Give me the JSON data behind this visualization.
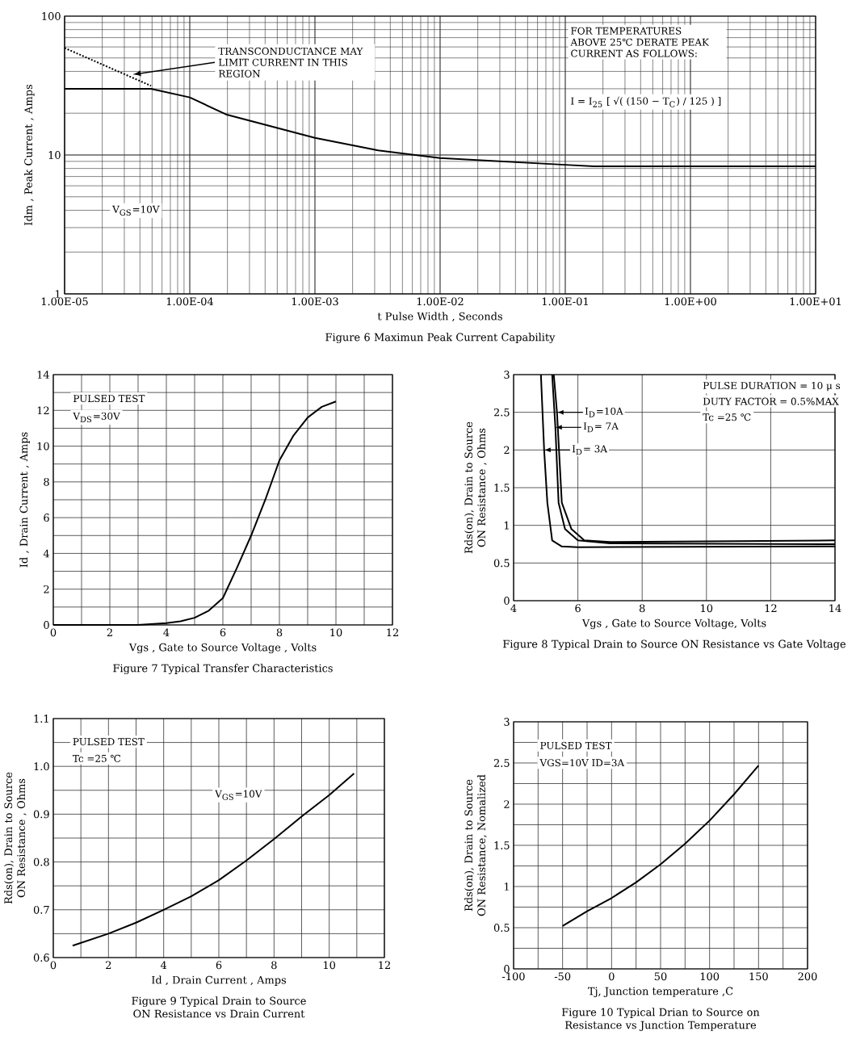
{
  "chart_data": [
    {
      "type": "line",
      "title": "Figure    6    Maximun Peak Current Capability",
      "xlabel": "t    Pulse Width , Seconds",
      "ylabel": "Idm , Peak Current , Amps",
      "log": "xy",
      "grid": true,
      "xlim": [
        1e-05,
        10
      ],
      "ylim": [
        1,
        100
      ],
      "xticks": [
        {
          "value": 1e-05,
          "label": "1.00E-05"
        },
        {
          "value": 0.0001,
          "label": "1.00E-04"
        },
        {
          "value": 0.001,
          "label": "1.00E-03"
        },
        {
          "value": 0.01,
          "label": "1.00E-02"
        },
        {
          "value": 0.1,
          "label": "1.00E-01"
        },
        {
          "value": 1,
          "label": "1.00E+00"
        },
        {
          "value": 10,
          "label": "1.00E+01"
        }
      ],
      "yticks": [
        1,
        10,
        100
      ],
      "series": [
        {
          "color": "#000000",
          "x": [
            1e-05,
            4.9e-05,
            0.0001,
            0.000195,
            0.001,
            0.0032,
            0.01,
            0.1,
            0.17,
            10
          ],
          "values": [
            30,
            30,
            26,
            19.6,
            13.3,
            10.8,
            9.5,
            8.5,
            8.3,
            8.3
          ]
        },
        {
          "color": "#000000",
          "line_style": "dotted",
          "x": [
            1e-05,
            4.9e-05
          ],
          "values": [
            59,
            31.5
          ]
        }
      ],
      "annotations": [
        {
          "text": "TRANSCONDUCTANCE  MAY  LIMIT CURRENT  IN  THIS  REGION",
          "x": 3.5e-05,
          "y": 38
        },
        "FOR  TEMPERATURES ABOVE  25℃ DERATE  PEAK CURRENT  AS  FOLLOWS:",
        "I = I$_{25}$ [ √( (150 − T$_{C}$) / 125 ) ]",
        "V$_{GS}$=10V"
      ]
    },
    {
      "type": "line",
      "title": "Figure    7    Typical Transfer Characteristics",
      "xlabel": "Vgs , Gate to Source Voltage ,    Volts",
      "ylabel": "Id , Drain Current , Amps",
      "grid": true,
      "xlim": [
        0,
        12
      ],
      "ylim": [
        0,
        14
      ],
      "xticks": [
        0,
        {
          "value": 1,
          "label": null
        },
        2,
        {
          "value": 3,
          "label": null
        },
        4,
        {
          "value": 5,
          "label": null
        },
        6,
        {
          "value": 7,
          "label": null
        },
        8,
        {
          "value": 9,
          "label": null
        },
        10,
        {
          "value": 11,
          "label": null
        },
        12
      ],
      "yticks": [
        0,
        {
          "value": 1,
          "label": null
        },
        2,
        {
          "value": 3,
          "label": null
        },
        4,
        {
          "value": 5,
          "label": null
        },
        6,
        {
          "value": 7,
          "label": null
        },
        8,
        {
          "value": 9,
          "label": null
        },
        10,
        {
          "value": 11,
          "label": null
        },
        12,
        {
          "value": 13,
          "label": null
        },
        14
      ],
      "series": [
        {
          "color": "#000000",
          "x": [
            0,
            3,
            4,
            4.5,
            5,
            5.5,
            6,
            6.5,
            7,
            7.5,
            8,
            8.5,
            9,
            9.5,
            10
          ],
          "values": [
            0,
            0,
            0.1,
            0.2,
            0.4,
            0.8,
            1.5,
            3.2,
            5,
            7,
            9.2,
            10.6,
            11.6,
            12.2,
            12.5
          ]
        }
      ],
      "annotations": [
        "PULSED    TEST",
        "V$_{DS}$=30V"
      ]
    },
    {
      "type": "line",
      "title": "Figure    8    Typical Drain to Source ON Resistance vs Gate Voltage",
      "xlabel": "Vgs , Gate to Source Voltage, Volts",
      "ylabel": "Rds(on), Drain to Source ON Resistance , Ohms",
      "grid": true,
      "xlim": [
        4,
        14
      ],
      "ylim": [
        0,
        3
      ],
      "legend": "top left",
      "xticks": [
        4,
        6,
        8,
        10,
        12,
        14
      ],
      "yticks": [
        0,
        0.5,
        1,
        1.5,
        2,
        2.5,
        3
      ],
      "series": [
        {
          "name": "I$_{D}$=10A",
          "color": "#000000",
          "x": [
            5.25,
            5.35,
            5.5,
            5.8,
            6.2,
            7,
            14
          ],
          "values": [
            3,
            2.5,
            1.3,
            0.95,
            0.8,
            0.78,
            0.8
          ]
        },
        {
          "name": "I$_{D}$= 7A",
          "color": "#000000",
          "x": [
            5.2,
            5.3,
            5.4,
            5.6,
            6,
            7,
            14
          ],
          "values": [
            3,
            2.3,
            1.3,
            0.95,
            0.8,
            0.76,
            0.75
          ]
        },
        {
          "name": "I$_{D}$= 3A",
          "color": "#000000",
          "x": [
            4.85,
            4.95,
            5.05,
            5.2,
            5.5,
            6,
            14
          ],
          "values": [
            3,
            2,
            1.3,
            0.8,
            0.72,
            0.71,
            0.72
          ]
        }
      ],
      "annotations": [
        "PULSE    DURATION = 10 μ s",
        "DUTY    FACTOR = 0.5%MAX",
        "Tc =25  ℃"
      ]
    },
    {
      "type": "line",
      "title": "Figure    9    Typical Drain to Source ON Resistance vs Drain Current",
      "xlabel": "Id , Drain Current , Amps",
      "ylabel": "Rds(on), Drain to Source ON Resistance , Ohms",
      "grid": true,
      "xlim": [
        0,
        12
      ],
      "ylim": [
        0.6,
        1.1
      ],
      "xticks": [
        0,
        {
          "value": 1,
          "label": null
        },
        2,
        {
          "value": 3,
          "label": null
        },
        4,
        {
          "value": 5,
          "label": null
        },
        6,
        {
          "value": 7,
          "label": null
        },
        8,
        {
          "value": 9,
          "label": null
        },
        10,
        {
          "value": 11,
          "label": null
        },
        12
      ],
      "yticks": [
        0.6,
        {
          "value": 0.65,
          "label": null
        },
        0.7,
        {
          "value": 0.75,
          "label": null
        },
        0.8,
        {
          "value": 0.85,
          "label": null
        },
        0.9,
        {
          "value": 0.95,
          "label": null
        },
        {
          "value": 1,
          "label": "1.0"
        },
        {
          "value": 1.05,
          "label": null
        },
        1.1
      ],
      "series": [
        {
          "color": "#000000",
          "x": [
            0.7,
            2,
            3,
            4,
            5,
            6,
            7,
            8,
            9,
            10,
            10.9
          ],
          "values": [
            0.625,
            0.65,
            0.673,
            0.7,
            0.728,
            0.762,
            0.803,
            0.848,
            0.895,
            0.94,
            0.985
          ]
        }
      ],
      "annotations": [
        "PULSED    TEST",
        "Tc =25  ℃",
        "V$_{GS}$=10V"
      ]
    },
    {
      "type": "line",
      "title": "Figure    10    Typical Drian to Source on Resistance vs Junction Temperature",
      "xlabel": "Tj, Junction temperature ,C",
      "ylabel": "Rds(on), Drain to Source ON Resistance, Nomalized",
      "grid": true,
      "xlim": [
        -100,
        200
      ],
      "ylim": [
        0,
        3
      ],
      "xticks": [
        -100,
        {
          "value": -75,
          "label": null
        },
        -50,
        {
          "value": -25,
          "label": null
        },
        0,
        {
          "value": 25,
          "label": null
        },
        50,
        {
          "value": 75,
          "label": null
        },
        100,
        {
          "value": 125,
          "label": null
        },
        150,
        {
          "value": 175,
          "label": null
        },
        200
      ],
      "yticks": [
        0,
        {
          "value": 0.25,
          "label": null
        },
        0.5,
        {
          "value": 0.75,
          "label": null
        },
        1,
        {
          "value": 1.25,
          "label": null
        },
        1.5,
        {
          "value": 1.75,
          "label": null
        },
        2,
        {
          "value": 2.25,
          "label": null
        },
        2.5,
        {
          "value": 2.75,
          "label": null
        },
        3
      ],
      "series": [
        {
          "color": "#000000",
          "x": [
            -50,
            -25,
            0,
            25,
            50,
            75,
            100,
            125,
            150
          ],
          "values": [
            0.52,
            0.7,
            0.86,
            1.05,
            1.27,
            1.52,
            1.8,
            2.12,
            2.47
          ]
        }
      ],
      "annotations": [
        "PULSED    TEST",
        "VGS=10V    ID=3A"
      ]
    }
  ]
}
